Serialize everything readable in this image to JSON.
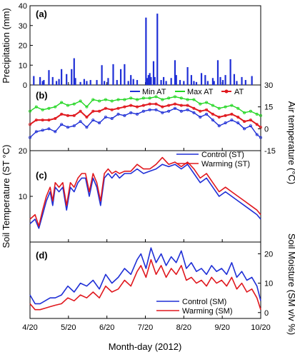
{
  "figure": {
    "x_axis_label": "Month-day (2012)",
    "x_ticks": [
      "4/20",
      "5/20",
      "6/20",
      "7/20",
      "8/20",
      "9/20",
      "10/20"
    ],
    "colors": {
      "blue": "#1f2fd6",
      "green": "#22d622",
      "red": "#e0181e",
      "bar": "#1f2fd6"
    }
  },
  "chart_data": [
    {
      "panel": "(a)",
      "type": "bar",
      "ylabel": "Precipitation (mm)",
      "ylim": [
        0,
        40
      ],
      "yticks": [
        "0",
        "10",
        "20",
        "30",
        "40"
      ],
      "x_range": [
        0,
        183
      ],
      "x_unit": "days since 4/20",
      "days": [
        3,
        8,
        10,
        11,
        15,
        18,
        21,
        23,
        25,
        29,
        33,
        35,
        36,
        40,
        43,
        45,
        48,
        53,
        57,
        59,
        62,
        66,
        69,
        72,
        75,
        78,
        80,
        82,
        85,
        92,
        93,
        94,
        95,
        96,
        98,
        99,
        101,
        104,
        106,
        108,
        112,
        115,
        116,
        119,
        122,
        125,
        128,
        130,
        132,
        136,
        139,
        141,
        145,
        146,
        149,
        151,
        153,
        155,
        159,
        162,
        164,
        168,
        171,
        176
      ],
      "values": [
        4.5,
        4,
        2,
        2.5,
        7.5,
        4,
        2,
        3,
        8,
        5.5,
        8,
        13.5,
        3.5,
        1.5,
        3,
        2,
        2.5,
        2.5,
        10,
        2,
        3.5,
        10.5,
        2.5,
        8,
        10.5,
        2,
        5,
        3,
        2.5,
        34,
        3.5,
        5,
        6,
        4,
        12,
        4,
        36,
        2.5,
        4,
        2,
        3.5,
        12.5,
        5,
        2.5,
        2,
        9,
        5,
        2,
        1.5,
        6,
        5,
        2,
        3.5,
        2,
        12.5,
        4,
        2.5,
        5,
        13,
        5.5,
        2,
        4,
        2.5,
        4.5
      ]
    },
    {
      "panel": "(b)",
      "type": "line",
      "ylabel": "Air temperature (°C)",
      "ylim": [
        -15,
        30
      ],
      "yticks": [
        "-15",
        "0",
        "15",
        "30"
      ],
      "x_unit": "days since 4/20",
      "x": [
        0,
        5,
        10,
        15,
        20,
        25,
        30,
        35,
        40,
        45,
        50,
        55,
        60,
        65,
        70,
        75,
        80,
        85,
        90,
        95,
        100,
        105,
        110,
        115,
        120,
        125,
        130,
        135,
        140,
        145,
        150,
        155,
        160,
        165,
        170,
        175,
        180,
        183
      ],
      "series": [
        {
          "name": "Min AT",
          "values": [
            -6,
            -2,
            -1,
            0,
            -2,
            3,
            1,
            2,
            5,
            1,
            6,
            4,
            8,
            7,
            10,
            9,
            11,
            10,
            12,
            13,
            13,
            11,
            12,
            14,
            12,
            13,
            11,
            8,
            10,
            6,
            2,
            4,
            6,
            4,
            0,
            2,
            -4,
            -6
          ]
        },
        {
          "name": "Max AT",
          "values": [
            12,
            15,
            13,
            14,
            15,
            18,
            16,
            17,
            19,
            15,
            20,
            19,
            20,
            19,
            20,
            20,
            21,
            20,
            21,
            21,
            22,
            20,
            21,
            22,
            21,
            20,
            20,
            17,
            18,
            16,
            14,
            15,
            16,
            14,
            11,
            12,
            10,
            9
          ]
        },
        {
          "name": "AT",
          "values": [
            3,
            6,
            6,
            6,
            7,
            10,
            9,
            9,
            12,
            8,
            12,
            12,
            14,
            13,
            14,
            15,
            16,
            15,
            16,
            17,
            17,
            15,
            16,
            17,
            16,
            16,
            14,
            12,
            13,
            10,
            8,
            9,
            10,
            8,
            5,
            6,
            3,
            1
          ]
        }
      ]
    },
    {
      "panel": "(c)",
      "type": "line",
      "ylabel": "Soil Temperature (ST °C)",
      "ylim": [
        0,
        20
      ],
      "yticks": [
        "10",
        "20"
      ],
      "x_unit": "days since 4/20",
      "x": [
        0,
        4,
        7,
        10,
        13,
        16,
        18,
        20,
        23,
        26,
        29,
        32,
        35,
        38,
        41,
        44,
        47,
        50,
        53,
        56,
        59,
        62,
        65,
        68,
        71,
        75,
        80,
        85,
        90,
        95,
        100,
        105,
        110,
        115,
        120,
        125,
        130,
        135,
        140,
        145,
        150,
        155,
        160,
        165,
        170,
        175,
        180,
        183
      ],
      "series": [
        {
          "name": "Control (ST)",
          "values": [
            4,
            5,
            3,
            6,
            9,
            11,
            8,
            12,
            11,
            12,
            7,
            12,
            11,
            13,
            14,
            14,
            10,
            14,
            12,
            8,
            14,
            15,
            14,
            15,
            14,
            15,
            15,
            16,
            15,
            15.5,
            16,
            17,
            16.5,
            17,
            16,
            17,
            15,
            13,
            14,
            12,
            10,
            11,
            10,
            9,
            8,
            7,
            6,
            5
          ]
        },
        {
          "name": "Warming (ST)",
          "values": [
            5,
            6,
            3.5,
            7,
            10,
            12,
            9,
            13,
            12,
            13,
            8,
            13,
            12,
            14,
            15,
            15,
            11,
            15,
            13,
            9,
            15,
            16,
            15,
            15.5,
            15,
            15.5,
            15.5,
            17,
            16,
            16,
            17,
            18.5,
            17,
            17.5,
            16.5,
            17.5,
            16,
            14,
            15,
            13,
            11,
            12,
            11,
            10,
            9,
            8,
            7,
            6
          ]
        }
      ]
    },
    {
      "panel": "(d)",
      "type": "line",
      "ylabel": "Soil Moisture (SM v/v %)",
      "ylim": [
        -2,
        24
      ],
      "yticks": [
        "0",
        "10",
        "20"
      ],
      "x_unit": "days since 4/20",
      "x": [
        0,
        4,
        8,
        12,
        16,
        20,
        25,
        30,
        35,
        40,
        45,
        50,
        55,
        60,
        65,
        70,
        75,
        80,
        85,
        88,
        92,
        96,
        100,
        104,
        108,
        112,
        116,
        120,
        124,
        128,
        132,
        136,
        140,
        144,
        148,
        152,
        156,
        160,
        164,
        168,
        172,
        176,
        180,
        183
      ],
      "series": [
        {
          "name": "Control (SM)",
          "values": [
            6,
            3,
            3,
            4,
            5,
            5,
            6,
            9,
            7,
            10,
            9,
            11,
            8,
            13,
            10,
            12,
            15,
            13,
            18,
            20,
            15,
            22,
            17,
            20,
            16,
            19,
            17,
            21,
            15,
            17,
            14,
            15,
            13,
            16,
            14,
            15,
            13,
            17,
            12,
            14,
            11,
            12,
            9,
            4
          ]
        },
        {
          "name": "Warming (SM)",
          "values": [
            3,
            1,
            1,
            1.5,
            2,
            2.5,
            3,
            5,
            4,
            6,
            5,
            7,
            5,
            9,
            7,
            8,
            11,
            9,
            14,
            16,
            12,
            18,
            13,
            16,
            12,
            15,
            13,
            16,
            11,
            12,
            10,
            11,
            9,
            12,
            10,
            11,
            9,
            12,
            8,
            10,
            7,
            8,
            5,
            1
          ]
        }
      ]
    }
  ]
}
